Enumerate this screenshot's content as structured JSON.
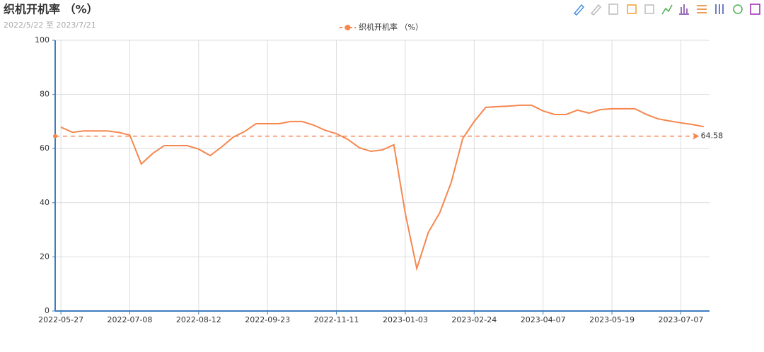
{
  "chart_data": {
    "type": "line",
    "title": "织机开机率 （%）",
    "subtitle": "2022/5/22 至 2023/7/21",
    "categories": [
      "2022-05-27",
      null,
      null,
      null,
      null,
      null,
      "2022-07-08",
      null,
      null,
      null,
      null,
      null,
      "2022-08-12",
      null,
      null,
      null,
      null,
      null,
      "2022-09-23",
      null,
      null,
      null,
      null,
      null,
      "2022-11-11",
      null,
      null,
      null,
      null,
      null,
      "2023-01-03",
      null,
      null,
      null,
      null,
      null,
      "2023-02-24",
      null,
      null,
      null,
      null,
      null,
      "2023-04-07",
      null,
      null,
      null,
      null,
      null,
      "2023-05-19",
      null,
      null,
      null,
      null,
      null,
      "2023-07-07",
      null,
      null
    ],
    "series": [
      {
        "name": "织机开机率 （%）",
        "color": "#f5874f",
        "values": [
          67.9,
          66,
          66.5,
          66.5,
          66.5,
          66,
          65,
          54.3,
          58.2,
          61.1,
          61.1,
          61.1,
          59.8,
          57.4,
          60.6,
          64.2,
          66.3,
          69.2,
          69.2,
          69.2,
          70,
          70,
          68.7,
          66.8,
          65.5,
          63.4,
          60.3,
          59,
          59.5,
          61.4,
          36,
          15.7,
          29,
          36.3,
          47.5,
          63.7,
          70,
          75.2,
          75.5,
          75.7,
          76,
          76,
          73.9,
          72.6,
          72.6,
          74.2,
          73.1,
          74.4,
          74.7,
          74.7,
          74.7,
          72.6,
          71,
          70.2,
          69.5,
          68.9,
          68.1
        ]
      }
    ],
    "average_line": 64.58,
    "ylim": [
      0,
      100
    ],
    "yticks": [
      0,
      20,
      40,
      60,
      80,
      100
    ],
    "grid": true
  }
}
